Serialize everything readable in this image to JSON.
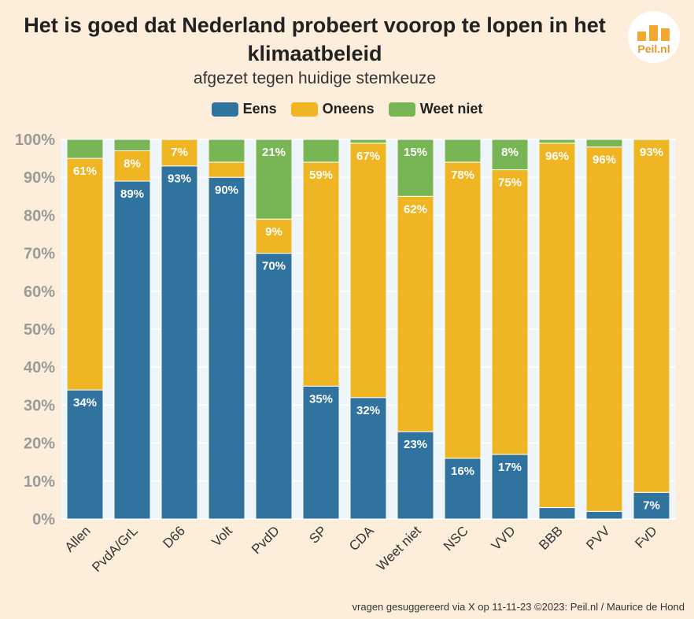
{
  "chart_data": {
    "type": "bar",
    "stacked": true,
    "title": "Het is goed dat Nederland probeert voorop te lopen in het klimaatbeleid",
    "subtitle": "afgezet tegen huidige stemkeuze",
    "categories": [
      "Allen",
      "PvdA/GrL",
      "D66",
      "Volt",
      "PvdD",
      "SP",
      "CDA",
      "Weet niet",
      "NSC",
      "VVD",
      "BBB",
      "PVV",
      "FvD"
    ],
    "series": [
      {
        "name": "Eens",
        "color": "#31739f",
        "values": [
          34,
          89,
          93,
          90,
          70,
          35,
          32,
          23,
          16,
          17,
          3,
          2,
          7
        ],
        "labels": [
          "34%",
          "89%",
          "93%",
          "90%",
          "70%",
          "35%",
          "32%",
          "23%",
          "16%",
          "17%",
          "",
          "",
          "7%"
        ]
      },
      {
        "name": "Oneens",
        "color": "#efb522",
        "values": [
          61,
          8,
          7,
          4,
          9,
          59,
          67,
          62,
          78,
          75,
          96,
          96,
          93
        ],
        "labels": [
          "61%",
          "8%",
          "7%",
          "",
          "9%",
          "59%",
          "67%",
          "62%",
          "78%",
          "75%",
          "96%",
          "96%",
          "93%"
        ]
      },
      {
        "name": "Weet niet",
        "color": "#78b554",
        "values": [
          5,
          3,
          0,
          6,
          21,
          6,
          1,
          15,
          6,
          8,
          1,
          2,
          0
        ],
        "labels": [
          "",
          "",
          "",
          "",
          "21%",
          "",
          "",
          "15%",
          "",
          "8%",
          "",
          "",
          ""
        ]
      }
    ],
    "ylim": [
      0,
      100
    ],
    "yticks": [
      "0%",
      "10%",
      "20%",
      "30%",
      "40%",
      "50%",
      "60%",
      "70%",
      "80%",
      "90%",
      "100%"
    ],
    "xlabel": "",
    "ylabel": "",
    "legend_position": "top-center",
    "grid": true
  },
  "logo_text": "Peil.nl",
  "footer": "vragen gesuggereerd via X op 11-11-23 ©2023: Peil.nl / Maurice de Hond"
}
